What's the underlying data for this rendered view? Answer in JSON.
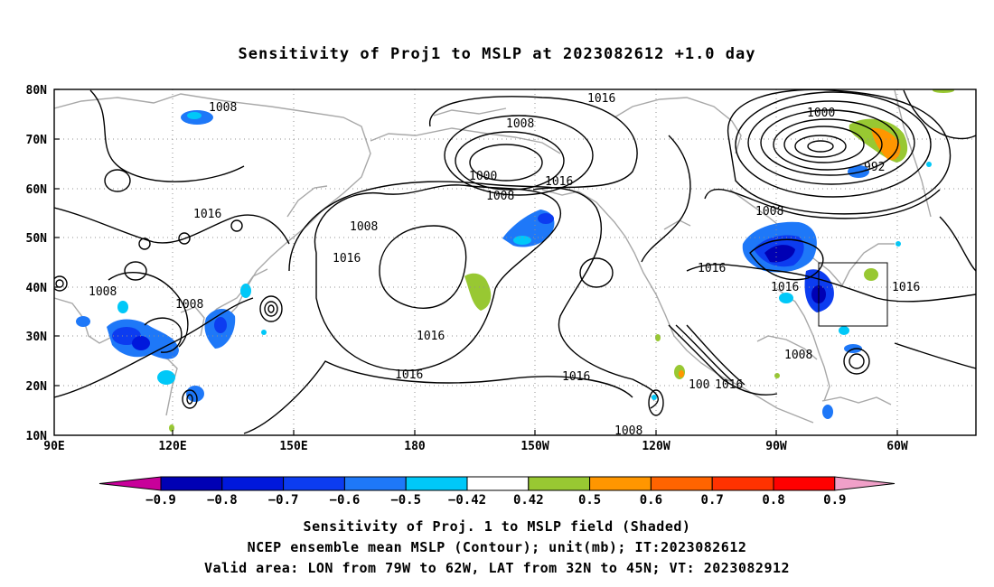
{
  "title": "Sensitivity of Proj1 to MSLP at 2023082612 +1.0 day",
  "y_ticks": [
    "80N",
    "70N",
    "60N",
    "50N",
    "40N",
    "30N",
    "20N",
    "10N"
  ],
  "x_ticks": [
    "90E",
    "120E",
    "150E",
    "180",
    "150W",
    "120W",
    "90W",
    "60W"
  ],
  "contour_labels": {
    "c1008_ne": "1008",
    "c1016_top": "1016",
    "c1008_ak": "1008",
    "c1000_ak": "1000",
    "c1008_ak2": "1008",
    "c1016_ak": "1016",
    "c1016_jp": "1016",
    "c1008_jp": "1008",
    "c1016_pac": "1016",
    "c1008_asia": "1008",
    "c1008_asia2": "1008",
    "c1016_sub": "1016",
    "c1016_low": "1016",
    "c1016_low2": "1016",
    "c1000_gr": "1000",
    "c992_gr": "992",
    "c1008_can": "1008",
    "c1016_us": "1016",
    "c1016_us2": "1016",
    "c1008_gulf": "1008",
    "c1016_atl": "1016",
    "c1016_mx": "1016",
    "c100_mx": "100",
    "c1008_bot": "1008"
  },
  "colorbar": {
    "labels": [
      "−0.9",
      "−0.8",
      "−0.7",
      "−0.6",
      "−0.5",
      "−0.42",
      "0.42",
      "0.5",
      "0.6",
      "0.7",
      "0.8",
      "0.9"
    ],
    "colors": [
      "#0000b4",
      "#0018dc",
      "#0c3cf0",
      "#1e78f8",
      "#00c8f8",
      "#ffffff",
      "#98c832",
      "#ff9600",
      "#ff6400",
      "#ff3200",
      "#ff0000"
    ],
    "left_tip": "#c8009a",
    "right_tip": "#f0a0c8"
  },
  "captions": {
    "line1": "Sensitivity of Proj. 1 to MSLP field (Shaded)",
    "line2": "NCEP ensemble mean MSLP (Contour); unit(mb); IT:2023082612",
    "line3": "Valid area: LON from 79W to 62W, LAT from 32N to 45N; VT: 2023082912"
  }
}
